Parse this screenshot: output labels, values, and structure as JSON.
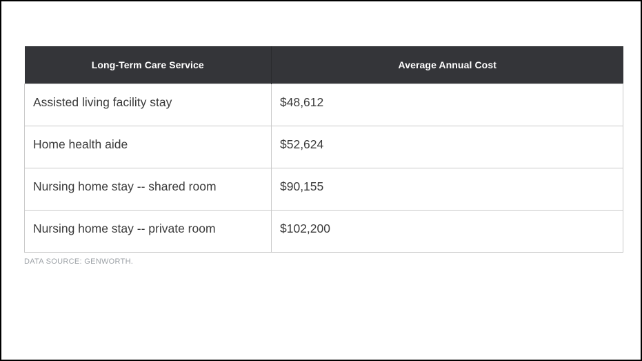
{
  "chart_data": {
    "type": "table",
    "columns": [
      "Long-Term Care Service",
      "Average Annual Cost"
    ],
    "rows": [
      [
        "Assisted living facility stay",
        "$48,612"
      ],
      [
        "Home health aide",
        "$52,624"
      ],
      [
        "Nursing home stay -- shared room",
        "$90,155"
      ],
      [
        "Nursing home stay -- private room",
        "$102,200"
      ]
    ],
    "source": "DATA SOURCE: GENWORTH.",
    "layout": {
      "legend": "none",
      "grid": "row-borders",
      "header_style": "dark-bar-centered",
      "body_alignment": "left"
    },
    "colors": {
      "header_bg": "#343539",
      "header_text": "#ffffff",
      "body_text": "#3a3a3a",
      "row_border": "#c9c9c9",
      "source_text": "#9ca1a6",
      "frame_border": "#000000",
      "canvas_bg": "#ffffff"
    }
  }
}
